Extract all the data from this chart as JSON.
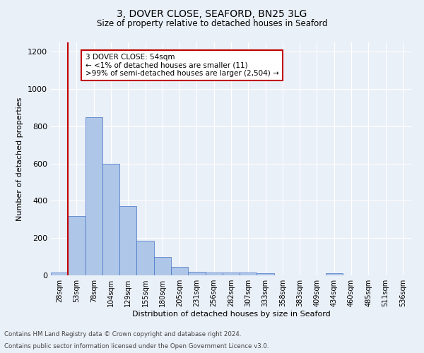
{
  "title1": "3, DOVER CLOSE, SEAFORD, BN25 3LG",
  "title2": "Size of property relative to detached houses in Seaford",
  "xlabel": "Distribution of detached houses by size in Seaford",
  "ylabel": "Number of detached properties",
  "footnote1": "Contains HM Land Registry data © Crown copyright and database right 2024.",
  "footnote2": "Contains public sector information licensed under the Open Government Licence v3.0.",
  "bar_labels": [
    "28sqm",
    "53sqm",
    "78sqm",
    "104sqm",
    "129sqm",
    "155sqm",
    "180sqm",
    "205sqm",
    "231sqm",
    "256sqm",
    "282sqm",
    "307sqm",
    "333sqm",
    "358sqm",
    "383sqm",
    "409sqm",
    "434sqm",
    "460sqm",
    "485sqm",
    "511sqm",
    "536sqm"
  ],
  "bar_values": [
    15,
    320,
    850,
    600,
    370,
    185,
    100,
    45,
    20,
    15,
    15,
    15,
    10,
    0,
    0,
    0,
    10,
    0,
    0,
    0,
    0
  ],
  "bar_color": "#aec6e8",
  "bar_edge_color": "#4472c4",
  "vline_x": 0.5,
  "vline_color": "#c00000",
  "ylim": [
    0,
    1250
  ],
  "yticks": [
    0,
    200,
    400,
    600,
    800,
    1000,
    1200
  ],
  "annotation_text": "3 DOVER CLOSE: 54sqm\n← <1% of detached houses are smaller (11)\n>99% of semi-detached houses are larger (2,504) →",
  "annotation_box_color": "#ffffff",
  "annotation_box_edge": "#c00000",
  "bg_color": "#eaf0f8"
}
